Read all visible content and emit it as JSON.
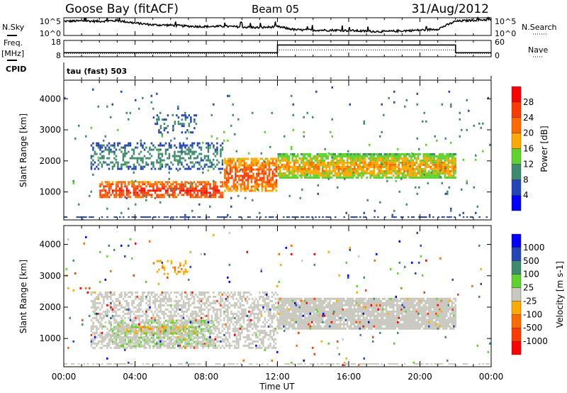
{
  "header": {
    "station": "Goose Bay (fitACF)",
    "beam": "Beam 05",
    "date": "31/Aug/2012"
  },
  "noise_panel": {
    "left_label": "N.Sky",
    "right_label": "N.Search",
    "left_ticks": [
      "10^5",
      "10^0"
    ],
    "right_ticks": [
      "10^5",
      "10^0"
    ]
  },
  "freq_panel": {
    "left_label_1": "Freq.",
    "left_label_2": "[MHz]",
    "right_label": "Nave",
    "left_ticks": [
      "18",
      "8"
    ],
    "right_ticks": [
      "60",
      "0"
    ]
  },
  "cpid": {
    "label": "CPID",
    "value": "tau (fast) 503"
  },
  "chart_data": [
    {
      "type": "line",
      "name": "noise",
      "x_hours": [
        0,
        1,
        2,
        3,
        4,
        5,
        6,
        7,
        8,
        9,
        10,
        11,
        12,
        13,
        14,
        15,
        16,
        17,
        18,
        19,
        20,
        21,
        22,
        23,
        24
      ],
      "sky_log10": [
        4.0,
        4.1,
        4.0,
        4.2,
        3.5,
        3.0,
        2.9,
        2.6,
        2.5,
        2.6,
        2.4,
        2.2,
        2.5,
        1.6,
        1.5,
        1.5,
        1.4,
        1.2,
        1.1,
        1.3,
        1.5,
        1.8,
        4.0,
        4.3,
        4.5
      ],
      "ylim": [
        0,
        5
      ]
    },
    {
      "type": "line",
      "name": "frequency",
      "x_hours": [
        0,
        12,
        12,
        22,
        22,
        24
      ],
      "freq_mhz": [
        10.5,
        10.5,
        15.2,
        15.2,
        10.5,
        10.5
      ],
      "nave": [
        12,
        12,
        25,
        25,
        12,
        12
      ],
      "freq_ylim": [
        8,
        18
      ],
      "nave_ylim": [
        0,
        60
      ]
    },
    {
      "type": "heatmap",
      "name": "power",
      "ylabel": "Slant Range [km]",
      "yticks": [
        "1000",
        "2000",
        "3000",
        "4000"
      ],
      "ylim": [
        100,
        4600
      ],
      "xlim": [
        0,
        24
      ],
      "colorbar": {
        "label": "Power [dB]",
        "ticks": [
          "28",
          "24",
          "20",
          "16",
          "12",
          "8",
          "4"
        ],
        "colors": [
          "#0000ff",
          "#2346b4",
          "#3f8a6e",
          "#5fd22e",
          "#ffaa00",
          "#ff6a00",
          "#ff3a00",
          "#ff0000"
        ]
      },
      "regions": [
        {
          "t": [
            2,
            9
          ],
          "r": [
            800,
            1350
          ],
          "p": [
            14,
            30
          ],
          "density": 0.7
        },
        {
          "t": [
            1.5,
            9
          ],
          "r": [
            1700,
            2600
          ],
          "p": [
            2,
            12
          ],
          "density": 0.4
        },
        {
          "t": [
            5,
            7.5
          ],
          "r": [
            2900,
            3500
          ],
          "p": [
            2,
            10
          ],
          "density": 0.25
        },
        {
          "t": [
            9,
            12
          ],
          "r": [
            1000,
            2100
          ],
          "p": [
            10,
            28
          ],
          "density": 0.7
        },
        {
          "t": [
            12,
            22
          ],
          "r": [
            1400,
            2250
          ],
          "p": [
            6,
            22
          ],
          "density": 0.85
        },
        {
          "t": [
            0,
            24
          ],
          "r": [
            100,
            4400
          ],
          "p": [
            2,
            14
          ],
          "density": 0.015
        }
      ]
    },
    {
      "type": "heatmap",
      "name": "velocity",
      "ylabel": "Slant Range [km]",
      "yticks": [
        "1000",
        "2000",
        "3000",
        "4000"
      ],
      "ylim": [
        100,
        4600
      ],
      "xlim": [
        0,
        24
      ],
      "colorbar": {
        "label": "Velocity [m s-1]",
        "ticks": [
          "1000",
          "500",
          "100",
          "25",
          "-25",
          "-100",
          "-500",
          "-1000"
        ],
        "colors": [
          "#ff0000",
          "#ff3a00",
          "#ff6a00",
          "#ffaa00",
          "#c8c8be",
          "#5fd22e",
          "#3f8a6e",
          "#2346b4",
          "#0000ff"
        ]
      },
      "regions": [
        {
          "t": [
            3.5,
            7.5
          ],
          "r": [
            1150,
            1400
          ],
          "v": "orange",
          "density": 0.8
        },
        {
          "t": [
            2.5,
            8.5
          ],
          "r": [
            750,
            1600
          ],
          "v": "green",
          "density": 0.5
        },
        {
          "t": [
            1.5,
            12
          ],
          "r": [
            700,
            2500
          ],
          "v": "gray",
          "density": 0.5
        },
        {
          "t": [
            12,
            22
          ],
          "r": [
            1300,
            2300
          ],
          "v": "gray",
          "density": 0.9
        },
        {
          "t": [
            5,
            7
          ],
          "r": [
            3000,
            3500
          ],
          "v": "orange",
          "density": 0.25
        },
        {
          "t": [
            0,
            24
          ],
          "r": [
            100,
            4400
          ],
          "v": "mixed",
          "density": 0.012
        }
      ]
    }
  ],
  "xaxis": {
    "label": "Time UT",
    "ticks": [
      "00:00",
      "04:00",
      "08:00",
      "12:00",
      "16:00",
      "20:00",
      "00:00"
    ]
  }
}
